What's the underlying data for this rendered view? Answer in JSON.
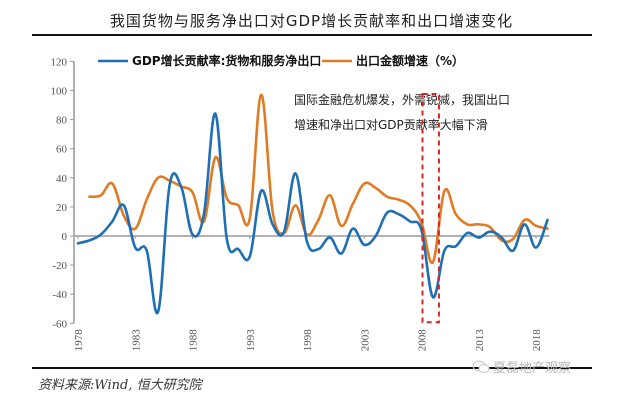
{
  "title": "我国货物与服务净出口对GDP增长贡献率和出口增速变化",
  "source": "资料来源:Wind, 恒大研究院",
  "watermark": {
    "icon": "wechat-icon",
    "text": "夏磊地产观察"
  },
  "colors": {
    "gdp_series": "#1f6fb4",
    "export_series": "#e07b25",
    "highlight_box": "#d62728",
    "axis": "#999999"
  },
  "chart_data": {
    "type": "line",
    "title": "我国货物与服务净出口对GDP增长贡献率和出口增速变化",
    "xlabel": "",
    "ylabel": "",
    "ylim": [
      -60,
      120
    ],
    "yticks": [
      -60,
      -40,
      -20,
      0,
      20,
      40,
      60,
      80,
      100,
      120
    ],
    "xlim": [
      1978,
      2019
    ],
    "xticks": [
      "1978",
      "1983",
      "1988",
      "1993",
      "1998",
      "2003",
      "2008",
      "2013",
      "2018"
    ],
    "grid": false,
    "legend": {
      "placement": "top",
      "entries": [
        "GDP增长贡献率:货物和服务净出口",
        "出口金额增速（%）"
      ]
    },
    "series": [
      {
        "name": "GDP增长贡献率:货物和服务净出口",
        "x": [
          1978,
          1979,
          1980,
          1981,
          1982,
          1983,
          1984,
          1985,
          1986,
          1987,
          1988,
          1989,
          1990,
          1991,
          1992,
          1993,
          1994,
          1995,
          1996,
          1997,
          1998,
          1999,
          2000,
          2001,
          2002,
          2003,
          2004,
          2005,
          2006,
          2007,
          2008,
          2009,
          2010,
          2011,
          2012,
          2013,
          2014,
          2015,
          2016,
          2017,
          2018,
          2019
        ],
        "values": [
          -5,
          -3,
          1,
          10,
          21,
          -8,
          -10,
          -52,
          35,
          34,
          1,
          15,
          84,
          -2,
          -9,
          -14,
          31,
          8,
          3,
          43,
          -4,
          -9,
          -1,
          -12,
          5,
          -6,
          0,
          16,
          15,
          10,
          4,
          -42,
          -10,
          -7,
          2,
          -1,
          3,
          -1,
          -10,
          8,
          -8,
          11
        ]
      },
      {
        "name": "出口金额增速（%）",
        "x": [
          1979,
          1980,
          1981,
          1982,
          1983,
          1984,
          1985,
          1986,
          1987,
          1988,
          1989,
          1990,
          1991,
          1992,
          1993,
          1994,
          1995,
          1996,
          1997,
          1998,
          1999,
          2000,
          2001,
          2002,
          2003,
          2004,
          2005,
          2006,
          2007,
          2008,
          2009,
          2010,
          2011,
          2012,
          2013,
          2014,
          2015,
          2016,
          2017,
          2018,
          2019
        ],
        "values": [
          27,
          28,
          36,
          14,
          5,
          25,
          40,
          38,
          34,
          30,
          10,
          54,
          26,
          21,
          12,
          97,
          17,
          2,
          21,
          1,
          11,
          28,
          7,
          22,
          36,
          33,
          27,
          25,
          21,
          9,
          -18,
          31,
          15,
          8,
          8,
          6,
          -3,
          -2,
          11,
          7,
          5
        ]
      }
    ],
    "annotation": {
      "text_line1": "国际金融危机爆发，外需锐减，我国出口",
      "text_line2": "增速和净出口对GDP贡献率大幅下滑",
      "highlight_range": [
        2008,
        2009
      ]
    }
  }
}
